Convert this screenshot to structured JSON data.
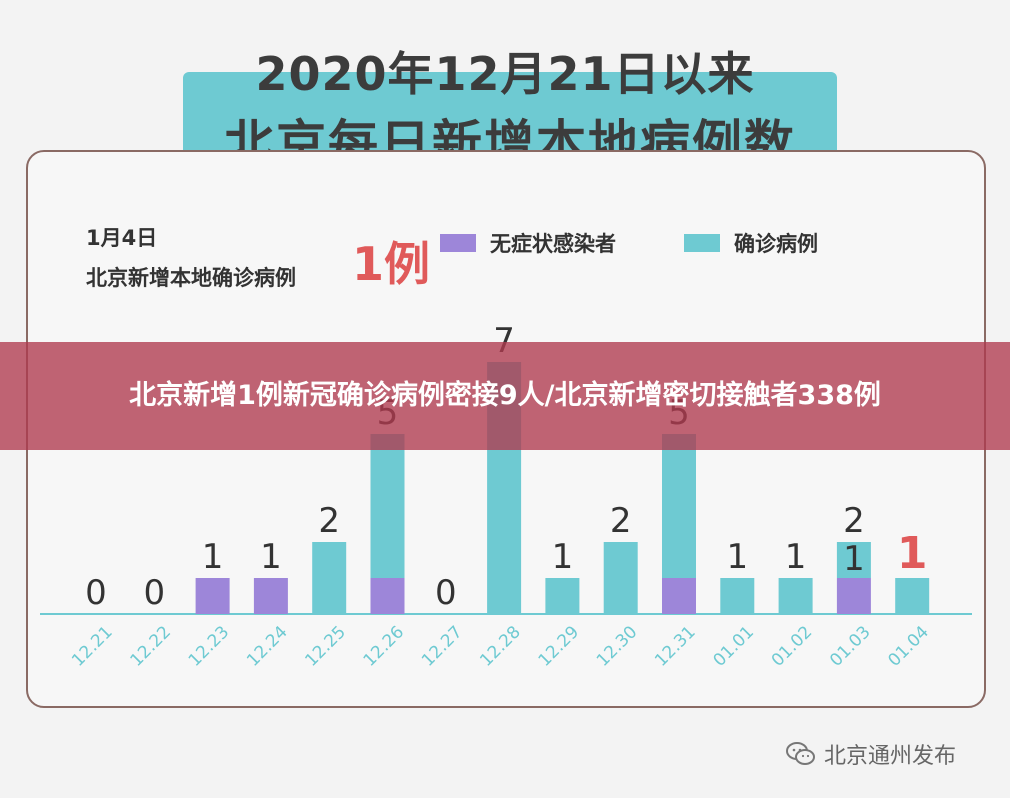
{
  "title": {
    "line1": "2020年12月21日以来",
    "line2": "北京每日新增本地病例数"
  },
  "annotation": {
    "date": "1月4日",
    "subtitle": "北京新增本地确诊病例",
    "highlight": "1例"
  },
  "banner": {
    "text": "北京新增1例新冠确诊病例密接9人/北京新增密切接触者338例"
  },
  "watermark": {
    "text": "北京通州发布",
    "icon": "wechat-icon"
  },
  "colors": {
    "asymptomatic": "#9d86d9",
    "confirmed": "#6ecad2",
    "highlight": "#e05a5a",
    "tick": "#6ecad2"
  },
  "chart_data": {
    "type": "bar",
    "stacked": true,
    "categories": [
      "12.21",
      "12.22",
      "12.23",
      "12.24",
      "12.25",
      "12.26",
      "12.27",
      "12.28",
      "12.29",
      "12.30",
      "12.31",
      "01.01",
      "01.02",
      "01.03",
      "01.04"
    ],
    "series": [
      {
        "name": "无症状感染者",
        "values": [
          0,
          0,
          1,
          1,
          0,
          1,
          0,
          0,
          0,
          0,
          1,
          0,
          0,
          1,
          0
        ]
      },
      {
        "name": "确诊病例",
        "values": [
          0,
          0,
          0,
          0,
          2,
          4,
          0,
          7,
          1,
          2,
          4,
          1,
          1,
          1,
          1
        ]
      }
    ],
    "totals": [
      0,
      0,
      1,
      1,
      2,
      5,
      0,
      7,
      1,
      2,
      5,
      1,
      1,
      2,
      1
    ],
    "data_labels": [
      "0",
      "0",
      "1",
      "1",
      "2",
      "5",
      "0",
      "7",
      "1",
      "2",
      "5",
      "1",
      "1",
      "1",
      "1"
    ],
    "extra_labels": [
      {
        "index": 13,
        "text": "2"
      }
    ],
    "highlight_index": 14,
    "ylim": [
      0,
      7
    ],
    "legend": "top-right",
    "grid": false
  }
}
